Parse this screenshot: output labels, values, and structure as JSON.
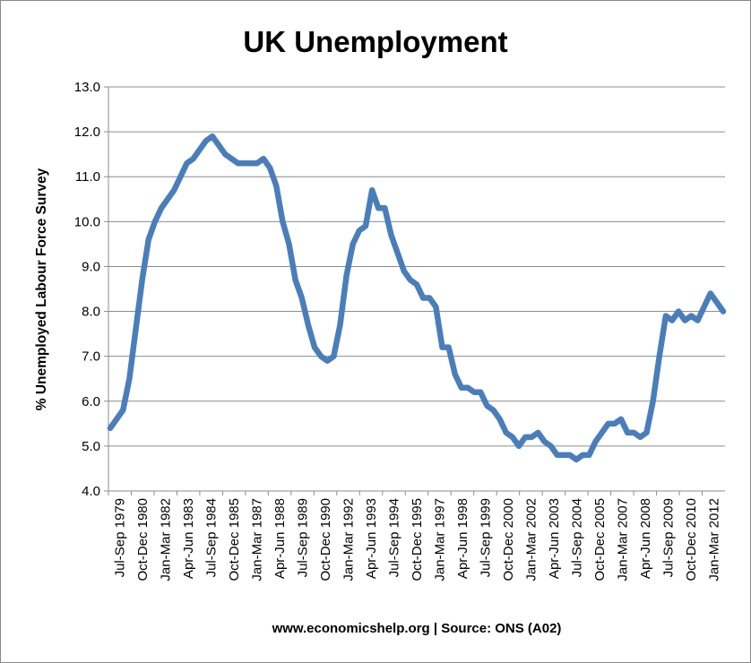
{
  "title": "UK Unemployment",
  "ylabel": "% Unemployed Labour Force Survey",
  "source": "www.economicshelp.org | Source: ONS (A02)",
  "chart_data": {
    "type": "line",
    "title": "UK Unemployment",
    "ylabel": "% Unemployed Labour Force Survey",
    "xlabel": "",
    "ylim": [
      4.0,
      13.0
    ],
    "y_ticks": [
      "4.0",
      "5.0",
      "6.0",
      "7.0",
      "8.0",
      "9.0",
      "10.0",
      "11.0",
      "12.0",
      "13.0"
    ],
    "x_tick_labels": [
      "Jul-Sep 1979",
      "Oct-Dec 1980",
      "Jan-Mar 1982",
      "Apr-Jun 1983",
      "Jul-Sep 1984",
      "Oct-Dec 1985",
      "Jan-Mar 1987",
      "Apr-Jun 1988",
      "Jul-Sep 1989",
      "Oct-Dec 1990",
      "Jan-Mar 1992",
      "Apr-Jun 1993",
      "Jul-Sep 1994",
      "Oct-Dec 1995",
      "Jan-Mar 1997",
      "Apr-Jun 1998",
      "Jul-Sep 1999",
      "Oct-Dec 2000",
      "Jan-Mar 2002",
      "Apr-Jun 2003",
      "Jul-Sep 2004",
      "Oct-Dec 2005",
      "Jan-Mar 2007",
      "Apr-Jun 2008",
      "Jul-Sep 2009",
      "Oct-Dec 2010",
      "Jan-Mar 2012"
    ],
    "grid": true,
    "legend": "none",
    "line_color": "#4a7ebb",
    "series": [
      {
        "values": [
          5.4,
          5.6,
          5.8,
          6.5,
          7.6,
          8.7,
          9.6,
          10.0,
          10.3,
          10.5,
          10.7,
          11.0,
          11.3,
          11.4,
          11.6,
          11.8,
          11.9,
          11.7,
          11.5,
          11.4,
          11.3,
          11.3,
          11.3,
          11.3,
          11.4,
          11.2,
          10.8,
          10.0,
          9.5,
          8.7,
          8.3,
          7.7,
          7.2,
          7.0,
          6.9,
          7.0,
          7.7,
          8.8,
          9.5,
          9.8,
          9.9,
          10.7,
          10.3,
          10.3,
          9.7,
          9.3,
          8.9,
          8.7,
          8.6,
          8.3,
          8.3,
          8.1,
          7.2,
          7.2,
          6.6,
          6.3,
          6.3,
          6.2,
          6.2,
          5.9,
          5.8,
          5.6,
          5.3,
          5.2,
          5.0,
          5.2,
          5.2,
          5.3,
          5.1,
          5.0,
          4.8,
          4.8,
          4.8,
          4.7,
          4.8,
          4.8,
          5.1,
          5.3,
          5.5,
          5.5,
          5.6,
          5.3,
          5.3,
          5.2,
          5.3,
          6.0,
          7.0,
          7.9,
          7.8,
          8.0,
          7.8,
          7.9,
          7.8,
          8.1,
          8.4,
          8.2,
          8.0
        ]
      }
    ]
  }
}
